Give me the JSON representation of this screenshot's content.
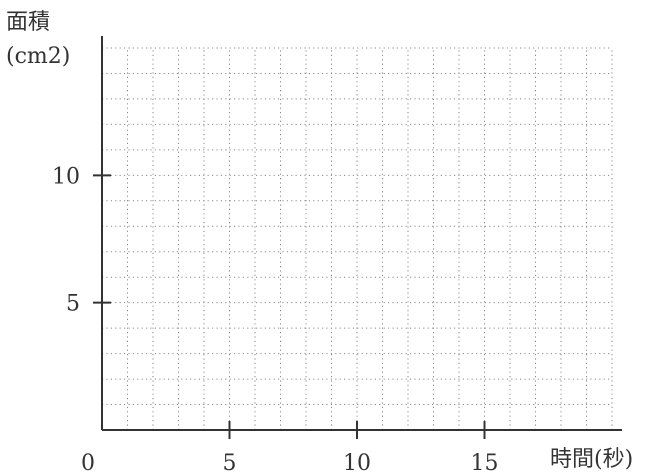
{
  "chart_data": {
    "type": "line",
    "ylabel": "面積",
    "ylabel_unit": "(cm2)",
    "xlabel": "時間(秒)",
    "x_origin_label": "0",
    "xlim": [
      0,
      20
    ],
    "ylim": [
      0,
      15
    ],
    "x_ticks": [
      {
        "value": 5,
        "label": "5"
      },
      {
        "value": 10,
        "label": "10"
      },
      {
        "value": 15,
        "label": "15"
      }
    ],
    "y_ticks": [
      {
        "value": 5,
        "label": "5"
      },
      {
        "value": 10,
        "label": "10"
      }
    ],
    "grid": "dotted",
    "grid_step_x": 1,
    "grid_step_y": 1,
    "series": []
  }
}
